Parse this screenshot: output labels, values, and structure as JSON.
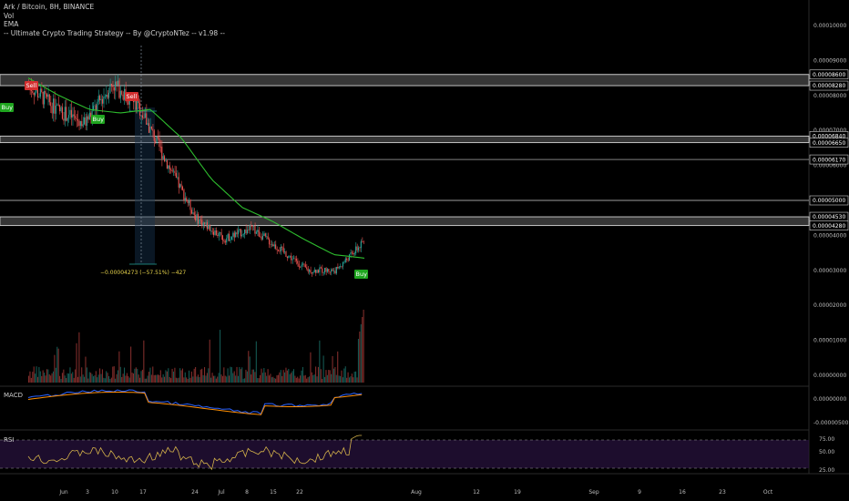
{
  "header": {
    "symbol": "Ark / Bitcoin, 8H, BINANCE",
    "indicators": [
      "Vol",
      "EMA",
      "-- Ultimate Crypto Trading Strategy -- By @CryptoNTez -- v1.98 --"
    ]
  },
  "panes": {
    "macd_label": "MACD",
    "rsi_label": "RSI"
  },
  "colors": {
    "background": "#000000",
    "up": "#26a69a",
    "down": "#ef5350",
    "ema": "#2ebd2e",
    "macd": "#2962ff",
    "signal": "#ff8f00",
    "rsi": "#d4b24a",
    "zone": "#787878",
    "buy": "#1fa51f",
    "sell": "#d32f2f"
  },
  "price_axis": {
    "labels": [
      "0.00010000",
      "0.00009000",
      "0.00008000",
      "0.00007000",
      "0.00006000",
      "0.00005000",
      "0.00004000",
      "0.00003000",
      "0.00002000",
      "0.00001000",
      "0.00000000"
    ],
    "boxed_labels": [
      "0.00008600",
      "0.00008280",
      "0.00006840",
      "0.00006650",
      "0.00006170",
      "0.00005000",
      "0.00004530",
      "0.00004280"
    ]
  },
  "time_axis": [
    "Jun",
    "3",
    "10",
    "17",
    "24",
    "Jul",
    "8",
    "15",
    "22",
    "Aug",
    "12",
    "19",
    "Sep",
    "9",
    "16",
    "23",
    "Oct"
  ],
  "macd_axis": [
    "0.00000000",
    "-0.00000500"
  ],
  "rsi_axis": [
    "75.00",
    "50.00",
    "25.00"
  ],
  "signals": [
    {
      "type": "buy",
      "label": "Buy"
    },
    {
      "type": "sell",
      "label": "Sell"
    },
    {
      "type": "buy",
      "label": "Buy"
    },
    {
      "type": "sell",
      "label": "Sell"
    },
    {
      "type": "buy",
      "label": "Buy"
    }
  ],
  "measure_label": "−0.00004273 (−57.51%) −427",
  "chart_data": {
    "type": "candlestick",
    "title": "Ark / Bitcoin, 8H, BINANCE",
    "horizontal_levels": [
      8.6e-05,
      8.28e-05,
      6.84e-05,
      6.65e-05,
      6.17e-05,
      5e-05,
      4.53e-05,
      4.28e-05
    ],
    "zones": [
      [
        8.28e-05,
        8.6e-05
      ],
      [
        6.65e-05,
        6.84e-05
      ],
      [
        4.28e-05,
        4.53e-05
      ]
    ],
    "price_path": [
      8.3e-05,
      7.6e-05,
      7.2e-05,
      8.35e-05,
      7.6e-05,
      6e-05,
      4.5e-05,
      3.9e-05,
      4.2e-05,
      3.6e-05,
      3e-05,
      3e-05,
      3.8e-05
    ],
    "ema_path": [
      8.5e-05,
      8e-05,
      7.6e-05,
      7.5e-05,
      7.6e-05,
      6.8e-05,
      5.6e-05,
      4.8e-05,
      4.4e-05,
      3.9e-05,
      3.45e-05,
      3.35e-05
    ],
    "measure": {
      "change": -4.273e-05,
      "percent": -57.51,
      "bars": -427
    },
    "rsi_levels": [
      70,
      30
    ]
  }
}
